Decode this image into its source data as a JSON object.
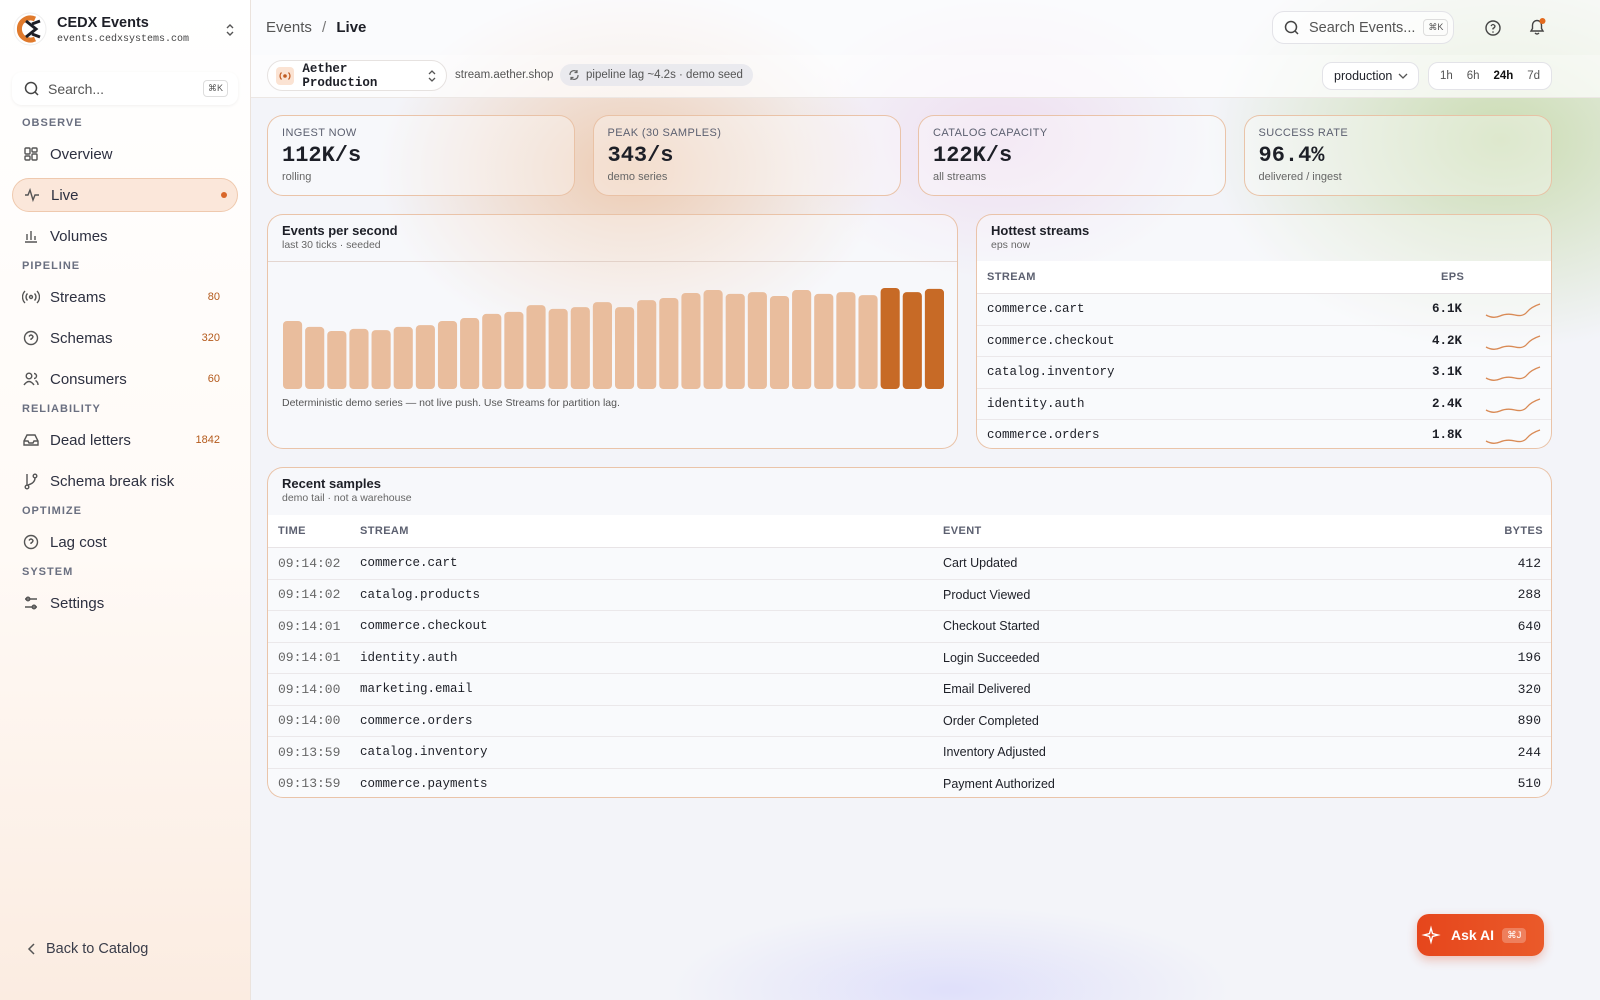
{
  "sidebar": {
    "brand": "CEDX Events",
    "domain": "events.cedxsystems.com",
    "search": "Search...",
    "search_shortcut": "⌘K",
    "sections": [
      {
        "label": "OBSERVE",
        "items": [
          {
            "label": "Overview",
            "icon": "grid"
          },
          {
            "label": "Live",
            "icon": "pulse",
            "active": true
          },
          {
            "label": "Volumes",
            "icon": "bars"
          }
        ]
      },
      {
        "label": "PIPELINE",
        "items": [
          {
            "label": "Streams",
            "icon": "radio",
            "badge": 80
          },
          {
            "label": "Schemas",
            "icon": "help",
            "badge": 320
          },
          {
            "label": "Consumers",
            "icon": "users",
            "badge": 60
          }
        ]
      },
      {
        "label": "RELIABILITY",
        "items": [
          {
            "label": "Dead letters",
            "icon": "inbox",
            "badge": 1842
          },
          {
            "label": "Schema break risk",
            "icon": "branch"
          }
        ]
      },
      {
        "label": "OPTIMIZE",
        "items": [
          {
            "label": "Lag cost",
            "icon": "help"
          }
        ]
      },
      {
        "label": "SYSTEM",
        "items": [
          {
            "label": "Settings",
            "icon": "sliders"
          }
        ]
      }
    ],
    "back": "Back to Catalog"
  },
  "header": {
    "breadcrumb": [
      "Events",
      "Live"
    ],
    "search": "Search Events...",
    "search_shortcut": "⌘K"
  },
  "toolbar": {
    "workspace": "Aether Production",
    "host": "stream.aether.shop",
    "status": "pipeline lag ~4.2s · demo seed",
    "environment": "production",
    "ranges": [
      "1h",
      "6h",
      "24h",
      "7d"
    ],
    "active_range": "24h"
  },
  "kpis": [
    {
      "label": "INGEST NOW",
      "value": "112K/s",
      "sub": "rolling"
    },
    {
      "label": "PEAK (30 SAMPLES)",
      "value": "343/s",
      "sub": "demo series"
    },
    {
      "label": "CATALOG CAPACITY",
      "value": "122K/s",
      "sub": "all streams"
    },
    {
      "label": "SUCCESS RATE",
      "value": "96.4%",
      "sub": "delivered / ingest"
    }
  ],
  "events_chart": {
    "title": "Events per second",
    "subtitle": "last 30 ticks · seeded",
    "values": [
      231,
      211,
      197,
      204,
      200,
      211,
      217,
      231,
      241,
      255,
      262,
      285,
      272,
      278,
      295,
      278,
      302,
      309,
      326,
      336,
      323,
      329,
      316,
      336,
      323,
      329,
      319,
      343,
      329,
      340
    ],
    "note": "Deterministic demo series — not live push. Use Streams for partition lag."
  },
  "hottest": {
    "title": "Hottest streams",
    "subtitle": "eps now",
    "columns": [
      "STREAM",
      "EPS"
    ],
    "rows": [
      [
        "commerce.cart",
        "6.1K"
      ],
      [
        "commerce.checkout",
        "4.2K"
      ],
      [
        "catalog.inventory",
        "3.1K"
      ],
      [
        "identity.auth",
        "2.4K"
      ],
      [
        "commerce.orders",
        "1.8K"
      ]
    ]
  },
  "recent": {
    "title": "Recent samples",
    "subtitle": "demo tail · not a warehouse",
    "columns": [
      "TIME",
      "STREAM",
      "EVENT",
      "BYTES"
    ],
    "rows": [
      [
        "09:14:02",
        "commerce.cart",
        "Cart Updated",
        412
      ],
      [
        "09:14:02",
        "catalog.products",
        "Product Viewed",
        288
      ],
      [
        "09:14:01",
        "commerce.checkout",
        "Checkout Started",
        640
      ],
      [
        "09:14:01",
        "identity.auth",
        "Login Succeeded",
        196
      ],
      [
        "09:14:00",
        "marketing.email",
        "Email Delivered",
        320
      ],
      [
        "09:14:00",
        "commerce.orders",
        "Order Completed",
        890
      ],
      [
        "09:13:59",
        "catalog.inventory",
        "Inventory Adjusted",
        244
      ],
      [
        "09:13:59",
        "commerce.payments",
        "Payment Authorized",
        510
      ]
    ]
  },
  "ask_ai": {
    "label": "Ask AI",
    "shortcut": "⌘J"
  }
}
